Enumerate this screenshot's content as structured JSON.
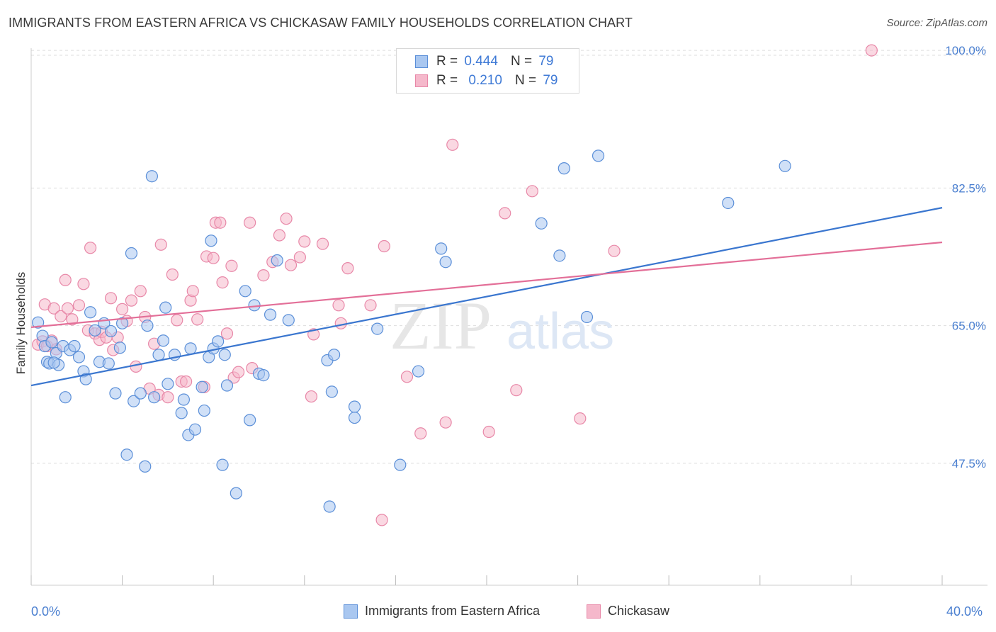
{
  "title": "IMMIGRANTS FROM EASTERN AFRICA VS CHICKASAW FAMILY HOUSEHOLDS CORRELATION CHART",
  "source": "Source: ZipAtlas.com",
  "watermark": {
    "zip": "ZIP",
    "atlas": "atlas"
  },
  "legend": {
    "rows": [
      {
        "r_label": "R =",
        "r_value": "0.444",
        "n_label": "N =",
        "n_value": "79"
      },
      {
        "r_label": "R =",
        "r_value": "0.210",
        "n_label": "N =",
        "n_value": "79"
      }
    ]
  },
  "colors": {
    "blue_fill": "#a9c7f0",
    "blue_stroke": "#5b8fd8",
    "blue_line": "#3a76cf",
    "pink_fill": "#f5b8cb",
    "pink_stroke": "#e888a8",
    "pink_line": "#e36f98",
    "tick_text": "#4a7fd0",
    "grid": "#dddddd"
  },
  "chart_data": {
    "type": "scatter",
    "title": "IMMIGRANTS FROM EASTERN AFRICA VS CHICKASAW FAMILY HOUSEHOLDS CORRELATION CHART",
    "xlabel": "",
    "ylabel": "Family Households",
    "xlim": [
      0,
      40
    ],
    "ylim": [
      32,
      101
    ],
    "x_tick_labels": [
      "0.0%",
      "40.0%"
    ],
    "y_ticks": [
      47.5,
      65.0,
      82.5,
      100.0
    ],
    "y_tick_labels": [
      "47.5%",
      "65.0%",
      "82.5%",
      "100.0%"
    ],
    "grid": true,
    "legend_position": "bottom",
    "series": [
      {
        "name": "Immigrants from Eastern Africa",
        "color": "#a9c7f0",
        "trend": {
          "x": [
            0,
            40
          ],
          "y": [
            57.4,
            80.0
          ]
        },
        "points": [
          [
            0.3,
            65.4
          ],
          [
            0.5,
            63.7
          ],
          [
            0.6,
            62.4
          ],
          [
            0.7,
            60.4
          ],
          [
            0.8,
            60.2
          ],
          [
            0.9,
            62.9
          ],
          [
            1.1,
            61.5
          ],
          [
            1.2,
            60.0
          ],
          [
            1.4,
            62.4
          ],
          [
            1.5,
            55.9
          ],
          [
            1.7,
            61.9
          ],
          [
            1.9,
            62.4
          ],
          [
            2.1,
            61.0
          ],
          [
            2.3,
            59.2
          ],
          [
            2.4,
            58.2
          ],
          [
            2.6,
            66.7
          ],
          [
            2.8,
            64.4
          ],
          [
            3.0,
            60.4
          ],
          [
            3.2,
            65.3
          ],
          [
            3.4,
            60.2
          ],
          [
            3.5,
            64.3
          ],
          [
            3.7,
            56.4
          ],
          [
            3.9,
            62.2
          ],
          [
            4.0,
            65.3
          ],
          [
            4.2,
            48.6
          ],
          [
            4.4,
            74.2
          ],
          [
            4.5,
            55.4
          ],
          [
            4.8,
            56.4
          ],
          [
            5.0,
            47.1
          ],
          [
            5.1,
            65.0
          ],
          [
            5.3,
            84.0
          ],
          [
            5.4,
            55.9
          ],
          [
            5.6,
            61.3
          ],
          [
            5.8,
            63.1
          ],
          [
            5.9,
            67.3
          ],
          [
            6.0,
            57.6
          ],
          [
            6.3,
            61.3
          ],
          [
            6.6,
            53.9
          ],
          [
            6.7,
            55.6
          ],
          [
            6.9,
            51.1
          ],
          [
            7.0,
            62.1
          ],
          [
            7.2,
            51.8
          ],
          [
            7.5,
            57.2
          ],
          [
            7.6,
            54.2
          ],
          [
            7.8,
            61.0
          ],
          [
            7.9,
            75.8
          ],
          [
            8.0,
            62.1
          ],
          [
            8.2,
            63.0
          ],
          [
            8.4,
            47.3
          ],
          [
            8.5,
            61.3
          ],
          [
            8.6,
            57.4
          ],
          [
            9.0,
            43.7
          ],
          [
            9.4,
            69.4
          ],
          [
            9.6,
            53.0
          ],
          [
            9.8,
            67.6
          ],
          [
            10.0,
            58.9
          ],
          [
            10.2,
            58.7
          ],
          [
            10.5,
            66.4
          ],
          [
            10.8,
            73.3
          ],
          [
            11.3,
            65.7
          ],
          [
            13.0,
            60.6
          ],
          [
            13.1,
            42.0
          ],
          [
            13.2,
            56.6
          ],
          [
            13.3,
            61.3
          ],
          [
            14.2,
            54.7
          ],
          [
            14.2,
            53.3
          ],
          [
            15.2,
            64.6
          ],
          [
            16.2,
            47.3
          ],
          [
            17.0,
            59.2
          ],
          [
            18.0,
            74.8
          ],
          [
            18.2,
            73.1
          ],
          [
            22.4,
            78.0
          ],
          [
            23.2,
            73.9
          ],
          [
            23.4,
            85.0
          ],
          [
            24.4,
            66.1
          ],
          [
            24.9,
            86.6
          ],
          [
            30.6,
            80.6
          ],
          [
            33.1,
            85.3
          ],
          [
            1.0,
            60.3
          ]
        ]
      },
      {
        "name": "Chickasaw",
        "color": "#f5b8cb",
        "trend": {
          "x": [
            0,
            40
          ],
          "y": [
            64.8,
            75.6
          ]
        },
        "points": [
          [
            0.3,
            62.6
          ],
          [
            0.5,
            63.0
          ],
          [
            0.6,
            67.7
          ],
          [
            0.7,
            62.4
          ],
          [
            0.9,
            63.1
          ],
          [
            1.0,
            67.2
          ],
          [
            1.1,
            62.0
          ],
          [
            1.3,
            66.2
          ],
          [
            1.5,
            70.8
          ],
          [
            1.6,
            67.2
          ],
          [
            1.8,
            65.8
          ],
          [
            2.1,
            67.6
          ],
          [
            2.3,
            70.3
          ],
          [
            2.5,
            64.4
          ],
          [
            2.6,
            74.9
          ],
          [
            2.8,
            64.0
          ],
          [
            3.0,
            63.2
          ],
          [
            3.1,
            64.2
          ],
          [
            3.3,
            63.5
          ],
          [
            3.5,
            68.5
          ],
          [
            3.6,
            61.9
          ],
          [
            3.8,
            63.5
          ],
          [
            4.0,
            67.1
          ],
          [
            4.2,
            65.6
          ],
          [
            4.4,
            68.2
          ],
          [
            4.6,
            59.8
          ],
          [
            4.8,
            69.4
          ],
          [
            5.0,
            66.1
          ],
          [
            5.2,
            57.0
          ],
          [
            5.4,
            62.7
          ],
          [
            5.6,
            56.2
          ],
          [
            5.7,
            75.3
          ],
          [
            6.0,
            55.9
          ],
          [
            6.2,
            71.5
          ],
          [
            6.4,
            65.7
          ],
          [
            6.6,
            57.9
          ],
          [
            6.8,
            57.9
          ],
          [
            7.0,
            68.2
          ],
          [
            7.1,
            69.4
          ],
          [
            7.3,
            65.8
          ],
          [
            7.6,
            57.2
          ],
          [
            7.7,
            73.8
          ],
          [
            8.0,
            73.6
          ],
          [
            8.1,
            78.1
          ],
          [
            8.3,
            78.1
          ],
          [
            8.4,
            70.5
          ],
          [
            8.6,
            64.0
          ],
          [
            8.8,
            72.6
          ],
          [
            8.9,
            58.4
          ],
          [
            9.1,
            59.1
          ],
          [
            9.6,
            78.1
          ],
          [
            9.7,
            59.6
          ],
          [
            10.2,
            71.4
          ],
          [
            10.6,
            73.1
          ],
          [
            10.9,
            76.5
          ],
          [
            11.2,
            78.6
          ],
          [
            11.4,
            72.7
          ],
          [
            11.8,
            73.7
          ],
          [
            12.0,
            75.7
          ],
          [
            12.3,
            56.0
          ],
          [
            12.4,
            63.9
          ],
          [
            12.8,
            75.4
          ],
          [
            13.9,
            72.3
          ],
          [
            13.5,
            67.6
          ],
          [
            13.6,
            65.3
          ],
          [
            14.9,
            67.6
          ],
          [
            15.4,
            40.3
          ],
          [
            15.5,
            75.1
          ],
          [
            16.5,
            58.5
          ],
          [
            17.1,
            51.3
          ],
          [
            18.2,
            52.7
          ],
          [
            18.5,
            88.0
          ],
          [
            20.1,
            51.5
          ],
          [
            20.8,
            79.3
          ],
          [
            21.3,
            56.8
          ],
          [
            22.0,
            82.1
          ],
          [
            24.1,
            53.2
          ],
          [
            25.6,
            74.5
          ],
          [
            36.9,
            100.0
          ]
        ]
      }
    ]
  },
  "bottom_legend": [
    "Immigrants from Eastern Africa",
    "Chickasaw"
  ]
}
